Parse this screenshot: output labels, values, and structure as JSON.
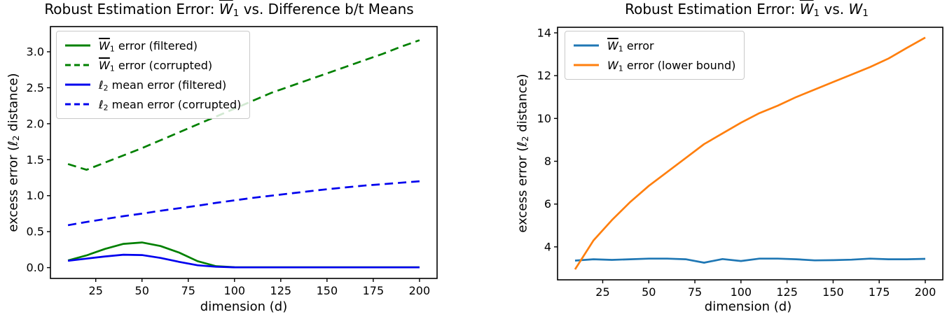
{
  "page": {
    "background": "#ffffff"
  },
  "chart_data": [
    {
      "type": "line",
      "title": "Robust Estimation Error: W̄₁ vs. Difference b/t Means",
      "title_rich": [
        {
          "t": "Robust Estimation Error: "
        },
        {
          "t": "W",
          "i": true,
          "o": true
        },
        {
          "t": "1",
          "s": true
        },
        {
          "t": " vs. Difference b/t Means"
        }
      ],
      "xlabel": "dimension (d)",
      "ylabel": "excess error (ℓ₂ distance)",
      "ylabel_rich": [
        {
          "t": "excess error ("
        },
        {
          "t": "ℓ"
        },
        {
          "t": "2",
          "s": true
        },
        {
          "t": " distance)"
        }
      ],
      "xlim": [
        0.5,
        209.5
      ],
      "ylim": [
        -0.15,
        3.35
      ],
      "xticks": [
        25,
        50,
        75,
        100,
        125,
        150,
        175,
        200
      ],
      "xtick_labels": [
        "25",
        "50",
        "75",
        "100",
        "125",
        "150",
        "175",
        "200"
      ],
      "yticks": [
        0,
        0.5,
        1.0,
        1.5,
        2.0,
        2.5,
        3.0
      ],
      "ytick_labels": [
        "0.0",
        "0.5",
        "1.0",
        "1.5",
        "2.0",
        "2.5",
        "3.0"
      ],
      "grid": false,
      "legend_position": "upper left",
      "x": [
        10,
        20,
        30,
        40,
        50,
        60,
        70,
        80,
        90,
        100,
        110,
        120,
        130,
        140,
        150,
        160,
        170,
        180,
        190,
        200
      ],
      "series": [
        {
          "name": "W̄₁ error (filtered)",
          "name_rich": [
            {
              "t": "W",
              "i": true,
              "o": true
            },
            {
              "t": "1",
              "s": true
            },
            {
              "t": " error (filtered)"
            }
          ],
          "color": "#008000",
          "style": "solid",
          "values": [
            0.1,
            0.17,
            0.26,
            0.33,
            0.35,
            0.3,
            0.21,
            0.09,
            0.02,
            0.006,
            0.005,
            0.005,
            0.005,
            0.005,
            0.005,
            0.005,
            0.005,
            0.005,
            0.005,
            0.005
          ]
        },
        {
          "name": "W̄₁ error (corrupted)",
          "name_rich": [
            {
              "t": "W",
              "i": true,
              "o": true
            },
            {
              "t": "1",
              "s": true
            },
            {
              "t": " error (corrupted)"
            }
          ],
          "color": "#008000",
          "style": "dashed",
          "values": [
            1.44,
            1.36,
            1.46,
            1.56,
            1.66,
            1.77,
            1.88,
            1.99,
            2.1,
            2.21,
            2.32,
            2.43,
            2.52,
            2.61,
            2.7,
            2.79,
            2.88,
            2.97,
            3.07,
            3.16
          ]
        },
        {
          "name": "ℓ₂ mean error (filtered)",
          "name_rich": [
            {
              "t": "ℓ"
            },
            {
              "t": "2",
              "s": true
            },
            {
              "t": " mean error (filtered)"
            }
          ],
          "color": "#0000ee",
          "style": "solid",
          "values": [
            0.095,
            0.125,
            0.155,
            0.18,
            0.175,
            0.135,
            0.08,
            0.033,
            0.012,
            0.005,
            0.004,
            0.004,
            0.004,
            0.004,
            0.004,
            0.004,
            0.004,
            0.004,
            0.004,
            0.004
          ]
        },
        {
          "name": "ℓ₂ mean error (corrupted)",
          "name_rich": [
            {
              "t": "ℓ"
            },
            {
              "t": "2",
              "s": true
            },
            {
              "t": " mean error (corrupted)"
            }
          ],
          "color": "#0000ee",
          "style": "dashed",
          "values": [
            0.59,
            0.635,
            0.675,
            0.715,
            0.75,
            0.79,
            0.825,
            0.86,
            0.9,
            0.935,
            0.97,
            1.0,
            1.03,
            1.06,
            1.09,
            1.115,
            1.14,
            1.16,
            1.18,
            1.2
          ]
        }
      ]
    },
    {
      "type": "line",
      "title": "Robust Estimation Error: W̄₁ vs. W₁",
      "title_rich": [
        {
          "t": "Robust Estimation Error:  "
        },
        {
          "t": "W",
          "i": true,
          "o": true
        },
        {
          "t": "1",
          "s": true
        },
        {
          "t": " vs. "
        },
        {
          "t": "W",
          "i": true
        },
        {
          "t": "1",
          "s": true
        }
      ],
      "xlabel": "dimension (d)",
      "ylabel": "excess error (ℓ₂ distance)",
      "ylabel_rich": [
        {
          "t": "excess error ("
        },
        {
          "t": "ℓ"
        },
        {
          "t": "2",
          "s": true
        },
        {
          "t": " distance)"
        }
      ],
      "xlim": [
        0.5,
        209.5
      ],
      "ylim": [
        2.46,
        14.26
      ],
      "xticks": [
        25,
        50,
        75,
        100,
        125,
        150,
        175,
        200
      ],
      "xtick_labels": [
        "25",
        "50",
        "75",
        "100",
        "125",
        "150",
        "175",
        "200"
      ],
      "yticks": [
        4,
        6,
        8,
        10,
        12,
        14
      ],
      "ytick_labels": [
        "4",
        "6",
        "8",
        "10",
        "12",
        "14"
      ],
      "grid": false,
      "legend_position": "upper left",
      "x": [
        10,
        20,
        30,
        40,
        50,
        60,
        70,
        80,
        90,
        100,
        110,
        120,
        130,
        140,
        150,
        160,
        170,
        180,
        190,
        200
      ],
      "series": [
        {
          "name": "W̄₁ error",
          "name_rich": [
            {
              "t": "W",
              "i": true,
              "o": true
            },
            {
              "t": "1",
              "s": true
            },
            {
              "t": " error"
            }
          ],
          "color": "#1f77b4",
          "style": "solid",
          "values": [
            3.36,
            3.42,
            3.39,
            3.42,
            3.45,
            3.45,
            3.42,
            3.26,
            3.43,
            3.34,
            3.45,
            3.45,
            3.42,
            3.37,
            3.38,
            3.4,
            3.45,
            3.42,
            3.42,
            3.44
          ]
        },
        {
          "name": "W₁ error (lower bound)",
          "name_rich": [
            {
              "t": "W",
              "i": true
            },
            {
              "t": "1",
              "s": true
            },
            {
              "t": " error (lower bound)"
            }
          ],
          "color": "#ff7f0e",
          "style": "solid",
          "values": [
            2.95,
            4.3,
            5.25,
            6.1,
            6.85,
            7.5,
            8.15,
            8.8,
            9.3,
            9.8,
            10.25,
            10.6,
            11.0,
            11.35,
            11.7,
            12.05,
            12.4,
            12.8,
            13.3,
            13.78
          ]
        }
      ]
    }
  ]
}
